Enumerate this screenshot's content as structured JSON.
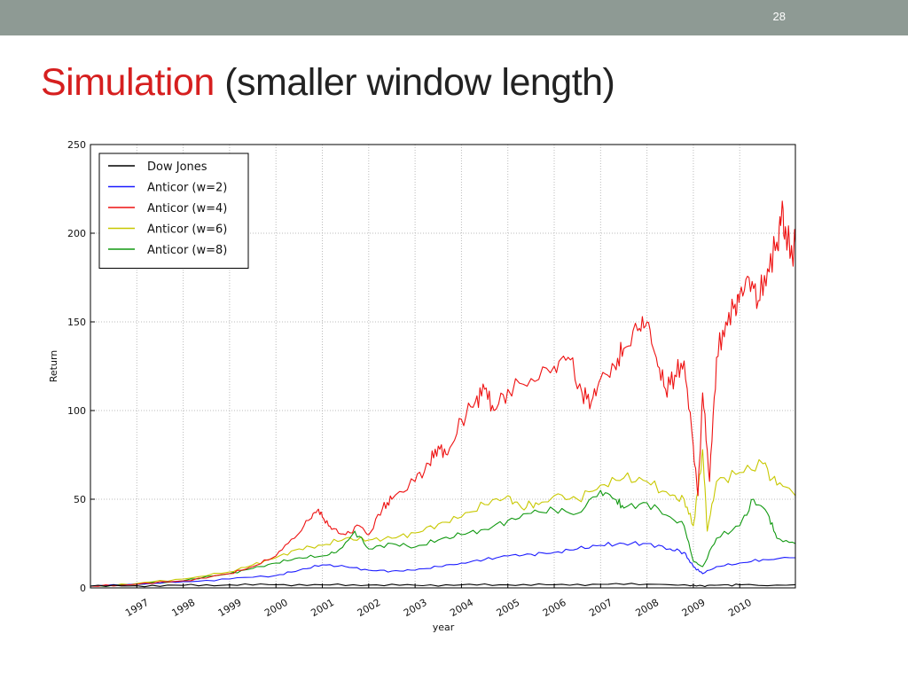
{
  "slide": {
    "number": "28",
    "title_highlight": "Simulation",
    "title_rest": " (smaller window length)"
  },
  "chart_data": {
    "type": "line",
    "xlabel": "year",
    "ylabel": "Return",
    "xlim": [
      1996.0,
      2011.2
    ],
    "ylim": [
      0,
      250
    ],
    "yticks": [
      0,
      50,
      100,
      150,
      200,
      250
    ],
    "xticks": [
      "1997",
      "1998",
      "1999",
      "2000",
      "2001",
      "2002",
      "2003",
      "2004",
      "2005",
      "2006",
      "2007",
      "2008",
      "2009",
      "2010"
    ],
    "grid": true,
    "legend_position": "top-left",
    "series": [
      {
        "name": "Dow Jones",
        "color": "#000000",
        "points": [
          [
            1996.0,
            1.0
          ],
          [
            1997.0,
            1.2
          ],
          [
            1998.0,
            1.4
          ],
          [
            1999.0,
            1.7
          ],
          [
            2000.0,
            1.8
          ],
          [
            2001.0,
            1.7
          ],
          [
            2002.0,
            1.6
          ],
          [
            2003.0,
            1.5
          ],
          [
            2004.0,
            1.7
          ],
          [
            2005.0,
            1.7
          ],
          [
            2006.0,
            1.8
          ],
          [
            2007.0,
            2.0
          ],
          [
            2008.0,
            2.1
          ],
          [
            2008.8,
            1.8
          ],
          [
            2009.2,
            1.2
          ],
          [
            2009.5,
            1.5
          ],
          [
            2010.0,
            1.7
          ],
          [
            2011.2,
            1.8
          ]
        ]
      },
      {
        "name": "Anticor (w=2)",
        "color": "#1a1aff",
        "points": [
          [
            1996.0,
            1.0
          ],
          [
            1997.0,
            2.0
          ],
          [
            1998.0,
            3.5
          ],
          [
            1999.0,
            5.0
          ],
          [
            2000.0,
            7.0
          ],
          [
            2000.5,
            10.0
          ],
          [
            2001.0,
            13.0
          ],
          [
            2001.5,
            12.0
          ],
          [
            2002.0,
            10.0
          ],
          [
            2002.5,
            9.5
          ],
          [
            2003.0,
            10.0
          ],
          [
            2003.5,
            12.0
          ],
          [
            2004.0,
            14.0
          ],
          [
            2004.5,
            16.0
          ],
          [
            2005.0,
            18.0
          ],
          [
            2005.5,
            19.0
          ],
          [
            2006.0,
            20.0
          ],
          [
            2006.5,
            22.0
          ],
          [
            2007.0,
            24.0
          ],
          [
            2007.5,
            25.0
          ],
          [
            2008.0,
            25.0
          ],
          [
            2008.5,
            22.0
          ],
          [
            2008.8,
            20.0
          ],
          [
            2009.0,
            12.0
          ],
          [
            2009.2,
            8.0
          ],
          [
            2009.5,
            12.0
          ],
          [
            2010.0,
            14.0
          ],
          [
            2010.5,
            16.0
          ],
          [
            2011.2,
            17.0
          ]
        ]
      },
      {
        "name": "Anticor (w=4)",
        "color": "#ee1111",
        "points": [
          [
            1996.0,
            1.0
          ],
          [
            1997.0,
            2.0
          ],
          [
            1998.0,
            4.0
          ],
          [
            1999.0,
            8.0
          ],
          [
            1999.5,
            12.0
          ],
          [
            2000.0,
            18.0
          ],
          [
            2000.4,
            28.0
          ],
          [
            2000.7,
            38.0
          ],
          [
            2000.9,
            44.0
          ],
          [
            2001.0,
            40.0
          ],
          [
            2001.2,
            33.0
          ],
          [
            2001.5,
            30.0
          ],
          [
            2001.8,
            35.0
          ],
          [
            2002.0,
            30.0
          ],
          [
            2002.3,
            45.0
          ],
          [
            2002.5,
            50.0
          ],
          [
            2003.0,
            60.0
          ],
          [
            2003.3,
            70.0
          ],
          [
            2003.5,
            80.0
          ],
          [
            2003.7,
            75.0
          ],
          [
            2004.0,
            95.0
          ],
          [
            2004.3,
            105.0
          ],
          [
            2004.5,
            112.0
          ],
          [
            2004.7,
            100.0
          ],
          [
            2005.0,
            112.0
          ],
          [
            2005.5,
            118.0
          ],
          [
            2006.0,
            125.0
          ],
          [
            2006.3,
            130.0
          ],
          [
            2006.6,
            110.0
          ],
          [
            2006.8,
            105.0
          ],
          [
            2007.0,
            118.0
          ],
          [
            2007.3,
            125.0
          ],
          [
            2007.5,
            135.0
          ],
          [
            2007.8,
            145.0
          ],
          [
            2008.0,
            150.0
          ],
          [
            2008.2,
            130.0
          ],
          [
            2008.4,
            112.0
          ],
          [
            2008.6,
            120.0
          ],
          [
            2008.8,
            128.0
          ],
          [
            2009.0,
            80.0
          ],
          [
            2009.1,
            52.0
          ],
          [
            2009.2,
            110.0
          ],
          [
            2009.35,
            60.0
          ],
          [
            2009.5,
            130.0
          ],
          [
            2009.7,
            150.0
          ],
          [
            2009.9,
            160.0
          ],
          [
            2010.0,
            165.0
          ],
          [
            2010.2,
            175.0
          ],
          [
            2010.4,
            162.0
          ],
          [
            2010.6,
            180.0
          ],
          [
            2010.8,
            195.0
          ],
          [
            2010.9,
            210.0
          ],
          [
            2011.0,
            200.0
          ],
          [
            2011.1,
            188.0
          ],
          [
            2011.2,
            195.0
          ]
        ]
      },
      {
        "name": "Anticor (w=6)",
        "color": "#c8c800",
        "points": [
          [
            1996.0,
            1.0
          ],
          [
            1997.0,
            2.5
          ],
          [
            1998.0,
            5.0
          ],
          [
            1999.0,
            9.0
          ],
          [
            1999.5,
            13.0
          ],
          [
            2000.0,
            17.0
          ],
          [
            2000.5,
            22.0
          ],
          [
            2001.0,
            24.0
          ],
          [
            2001.5,
            28.0
          ],
          [
            2002.0,
            27.0
          ],
          [
            2002.5,
            28.0
          ],
          [
            2003.0,
            31.0
          ],
          [
            2003.5,
            36.0
          ],
          [
            2004.0,
            40.0
          ],
          [
            2004.5,
            47.0
          ],
          [
            2005.0,
            52.0
          ],
          [
            2005.3,
            45.0
          ],
          [
            2005.6,
            48.0
          ],
          [
            2006.0,
            52.0
          ],
          [
            2006.5,
            50.0
          ],
          [
            2007.0,
            58.0
          ],
          [
            2007.5,
            62.0
          ],
          [
            2008.0,
            60.0
          ],
          [
            2008.5,
            52.0
          ],
          [
            2008.8,
            50.0
          ],
          [
            2009.0,
            35.0
          ],
          [
            2009.1,
            55.0
          ],
          [
            2009.2,
            78.0
          ],
          [
            2009.3,
            32.0
          ],
          [
            2009.5,
            60.0
          ],
          [
            2010.0,
            65.0
          ],
          [
            2010.5,
            70.0
          ],
          [
            2010.8,
            58.0
          ],
          [
            2011.2,
            52.0
          ]
        ]
      },
      {
        "name": "Anticor (w=8)",
        "color": "#119911",
        "points": [
          [
            1996.0,
            1.0
          ],
          [
            1997.0,
            2.0
          ],
          [
            1998.0,
            4.0
          ],
          [
            1999.0,
            8.0
          ],
          [
            1999.5,
            11.0
          ],
          [
            2000.0,
            14.0
          ],
          [
            2000.5,
            17.0
          ],
          [
            2001.0,
            18.0
          ],
          [
            2001.3,
            20.0
          ],
          [
            2001.7,
            32.0
          ],
          [
            2002.0,
            22.0
          ],
          [
            2002.5,
            25.0
          ],
          [
            2003.0,
            23.0
          ],
          [
            2003.5,
            27.0
          ],
          [
            2004.0,
            30.0
          ],
          [
            2004.5,
            33.0
          ],
          [
            2005.0,
            38.0
          ],
          [
            2005.5,
            42.0
          ],
          [
            2006.0,
            44.0
          ],
          [
            2006.5,
            42.0
          ],
          [
            2007.0,
            55.0
          ],
          [
            2007.3,
            50.0
          ],
          [
            2007.5,
            45.0
          ],
          [
            2008.0,
            48.0
          ],
          [
            2008.5,
            40.0
          ],
          [
            2008.8,
            35.0
          ],
          [
            2009.0,
            15.0
          ],
          [
            2009.2,
            12.0
          ],
          [
            2009.5,
            28.0
          ],
          [
            2010.0,
            35.0
          ],
          [
            2010.3,
            50.0
          ],
          [
            2010.6,
            42.0
          ],
          [
            2010.8,
            28.0
          ],
          [
            2011.2,
            25.0
          ]
        ]
      }
    ]
  }
}
